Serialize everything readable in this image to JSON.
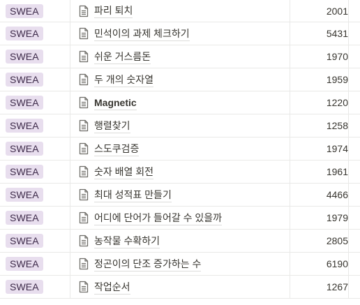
{
  "rows": [
    {
      "platform": "SWEA",
      "title": "파리 퇴치",
      "number": "2001",
      "bold": false
    },
    {
      "platform": "SWEA",
      "title": "민석이의 과제 체크하기",
      "number": "5431",
      "bold": false
    },
    {
      "platform": "SWEA",
      "title": "쉬운 거스름돈",
      "number": "1970",
      "bold": false
    },
    {
      "platform": "SWEA",
      "title": "두 개의 숫자열",
      "number": "1959",
      "bold": false
    },
    {
      "platform": "SWEA",
      "title": "Magnetic",
      "number": "1220",
      "bold": true
    },
    {
      "platform": "SWEA",
      "title": "행렬찾기",
      "number": "1258",
      "bold": false
    },
    {
      "platform": "SWEA",
      "title": "스도쿠검증",
      "number": "1974",
      "bold": false
    },
    {
      "platform": "SWEA",
      "title": "숫자 배열 회전",
      "number": "1961",
      "bold": false
    },
    {
      "platform": "SWEA",
      "title": "최대 성적표 만들기",
      "number": "4466",
      "bold": false
    },
    {
      "platform": "SWEA",
      "title": "어디에 단어가 들어갈 수 있을까",
      "number": "1979",
      "bold": false
    },
    {
      "platform": "SWEA",
      "title": "농작물 수확하기",
      "number": "2805",
      "bold": false
    },
    {
      "platform": "SWEA",
      "title": "정곤이의 단조 증가하는 수",
      "number": "6190",
      "bold": false
    },
    {
      "platform": "SWEA",
      "title": "작업순서",
      "number": "1267",
      "bold": false
    }
  ],
  "colors": {
    "badge_bg": "#e8deee",
    "badge_text": "#3d2a49",
    "divider": "#e9e9e7"
  },
  "icons": {
    "page": "page-icon"
  }
}
